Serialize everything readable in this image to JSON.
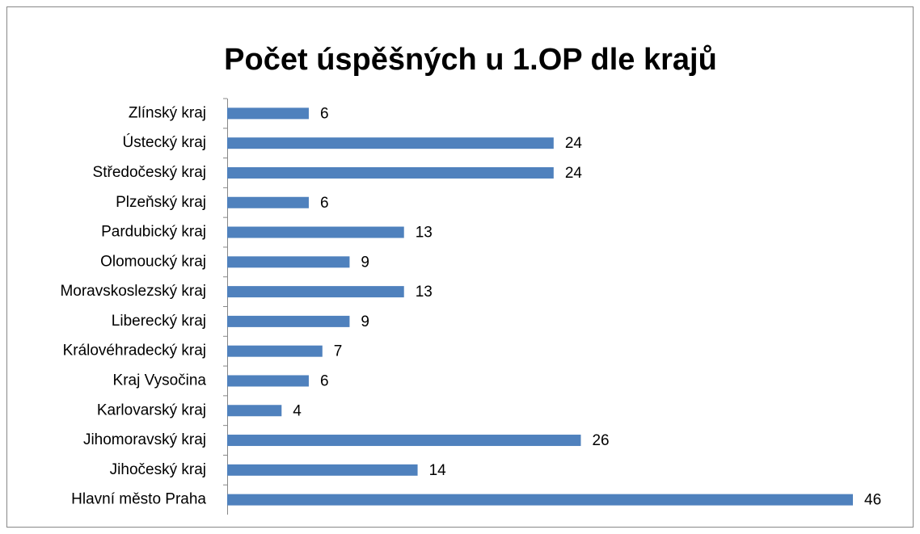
{
  "chart_data": {
    "type": "bar",
    "orientation": "horizontal",
    "title": "Počet  úspěšných u 1.OP dle krajů",
    "categories": [
      "Zlínský kraj",
      "Ústecký kraj",
      "Středočeský kraj",
      "Plzeňský kraj",
      "Pardubický kraj",
      "Olomoucký kraj",
      "Moravskoslezský kraj",
      "Liberecký kraj",
      "Královéhradecký kraj",
      "Kraj Vysočina",
      "Karlovarský kraj",
      "Jihomoravský kraj",
      "Jihočeský kraj",
      "Hlavní město Praha"
    ],
    "values": [
      6,
      24,
      24,
      6,
      13,
      9,
      13,
      9,
      7,
      6,
      4,
      26,
      14,
      46
    ],
    "color": "#4f81bd"
  }
}
